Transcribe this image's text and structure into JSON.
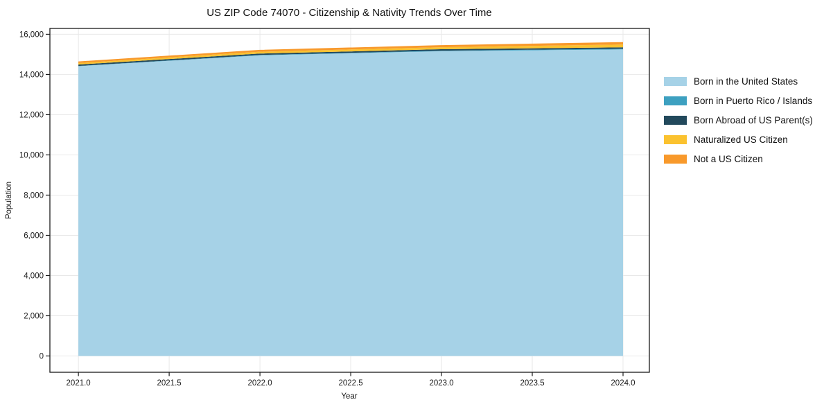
{
  "chart_data": {
    "type": "area",
    "stacked": true,
    "title": "US ZIP Code 74070 - Citizenship & Nativity Trends Over Time",
    "xlabel": "Year",
    "ylabel": "Population",
    "x": [
      2021,
      2022,
      2023,
      2024
    ],
    "series": [
      {
        "name": "Born in the United States",
        "color": "#a6d2e7",
        "values": [
          14410,
          14950,
          15160,
          15245
        ]
      },
      {
        "name": "Born in Puerto Rico / Islands",
        "color": "#3da0c0",
        "values": [
          15,
          20,
          25,
          35
        ]
      },
      {
        "name": "Born Abroad of US Parent(s)",
        "color": "#22495c",
        "values": [
          70,
          70,
          70,
          70
        ]
      },
      {
        "name": "Naturalized US Citizen",
        "color": "#fbc22f",
        "values": [
          70,
          90,
          100,
          140
        ]
      },
      {
        "name": "Not a US Citizen",
        "color": "#f8992b",
        "values": [
          85,
          95,
          105,
          120
        ]
      }
    ],
    "totals": [
      14650,
      15225,
      15460,
      15610
    ],
    "x_ticks": [
      2021.0,
      2021.5,
      2022.0,
      2022.5,
      2023.0,
      2023.5,
      2024.0
    ],
    "x_tick_labels": [
      "2021.0",
      "2021.5",
      "2022.0",
      "2022.5",
      "2023.0",
      "2023.5",
      "2024.0"
    ],
    "y_ticks": [
      0,
      2000,
      4000,
      6000,
      8000,
      10000,
      12000,
      14000,
      16000
    ],
    "y_tick_labels": [
      "0",
      "2,000",
      "4,000",
      "6,000",
      "8,000",
      "10,000",
      "12,000",
      "14,000",
      "16,000"
    ],
    "xlim": [
      2020.843,
      2024.145
    ],
    "ylim": [
      -810,
      16290
    ],
    "grid": true,
    "grid_color": "#e8e8e8",
    "axis_color": "#1a1a1a",
    "legend_position": "right-outside"
  }
}
